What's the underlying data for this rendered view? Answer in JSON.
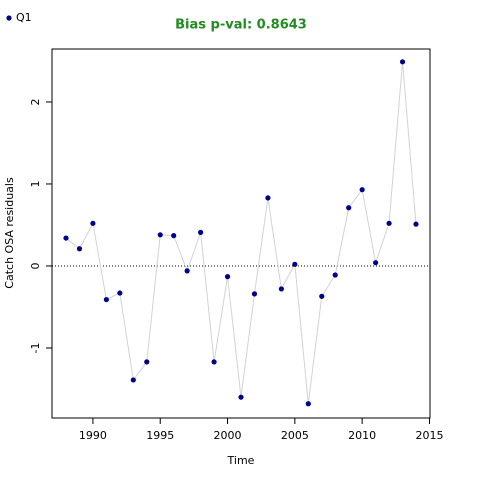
{
  "chart_data": {
    "type": "line",
    "title": "Bias p-val: 0.8643",
    "title_color": "#228b22",
    "x_label": "Time",
    "y_label": "Catch OSA residuals",
    "x": [
      1988,
      1989,
      1990,
      1991,
      1992,
      1993,
      1994,
      1995,
      1996,
      1997,
      1998,
      1999,
      2000,
      2001,
      2002,
      2003,
      2004,
      2005,
      2006,
      2007,
      2008,
      2009,
      2010,
      2011,
      2012,
      2013,
      2014
    ],
    "series": [
      {
        "name": "Q1",
        "color": "#00008b",
        "line_color": "#d3d3d3",
        "values": [
          0.34,
          0.21,
          0.52,
          -0.41,
          -0.33,
          -1.39,
          -1.17,
          0.38,
          0.37,
          -0.06,
          0.41,
          -1.17,
          -0.13,
          -1.6,
          -0.34,
          0.83,
          -0.28,
          0.02,
          -1.68,
          -0.37,
          -0.11,
          0.71,
          0.93,
          0.04,
          0.52,
          2.49,
          0.51
        ]
      }
    ],
    "xlim": [
      1986.96,
      2015.04
    ],
    "xticks": [
      1990,
      1995,
      2000,
      2005,
      2010,
      2015
    ],
    "ylim": [
      -1.854,
      2.646
    ],
    "yticks": [
      -1,
      0,
      1,
      2
    ],
    "hline": 0,
    "legend": "top-left"
  }
}
